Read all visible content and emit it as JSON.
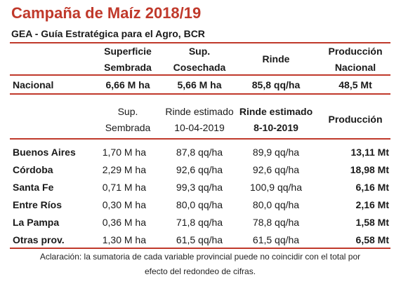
{
  "header": {
    "title": "Campaña de Maíz 2018/19",
    "subtitle": "GEA - Guía Estratégica para el Agro, BCR"
  },
  "national_table": {
    "columns": [
      {
        "line1": "Superficie",
        "line2": "Sembrada"
      },
      {
        "line1": "Sup.",
        "line2": "Cosechada"
      },
      {
        "line1": "Rinde",
        "line2": ""
      },
      {
        "line1": "Producción",
        "line2": "Nacional"
      }
    ],
    "row": {
      "name": "Nacional",
      "values": [
        "6,66 M ha",
        "5,66 M ha",
        "85,8 qq/ha",
        "48,5 Mt"
      ]
    }
  },
  "provincial_table": {
    "columns": [
      {
        "line1": "Sup.",
        "line2": "Sembrada"
      },
      {
        "line1": "Rinde estimado",
        "line2": "10-04-2019"
      },
      {
        "line1": "Rinde estimado",
        "line2": "8-10-2019"
      },
      {
        "line1": "Producción",
        "line2": ""
      }
    ],
    "rows": [
      {
        "name": "Buenos Aires",
        "values": [
          "1,70 M ha",
          "87,8 qq/ha",
          "89,9 qq/ha",
          "13,11 Mt"
        ]
      },
      {
        "name": "Córdoba",
        "values": [
          "2,29 M ha",
          "92,6 qq/ha",
          "92,6 qq/ha",
          "18,98 Mt"
        ]
      },
      {
        "name": "Santa Fe",
        "values": [
          "0,71 M ha",
          "99,3 qq/ha",
          "100,9 qq/ha",
          "6,16 Mt"
        ]
      },
      {
        "name": "Entre Ríos",
        "values": [
          "0,30 M ha",
          "80,0 qq/ha",
          "80,0 qq/ha",
          "2,16 Mt"
        ]
      },
      {
        "name": "La Pampa",
        "values": [
          "0,36 M ha",
          "71,8 qq/ha",
          "78,8 qq/ha",
          "1,58 Mt"
        ]
      },
      {
        "name": "Otras prov.",
        "values": [
          "1,30 M ha",
          "61,5 qq/ha",
          "61,5 qq/ha",
          "6,58 Mt"
        ]
      }
    ]
  },
  "footnote": {
    "line1": "Aclaración: la sumatoria de cada variable provincial puede no coincidir con el total por",
    "line2": "efecto del redondeo de cifras."
  },
  "colors": {
    "accent": "#c0392b",
    "text": "#1a1a1a"
  }
}
